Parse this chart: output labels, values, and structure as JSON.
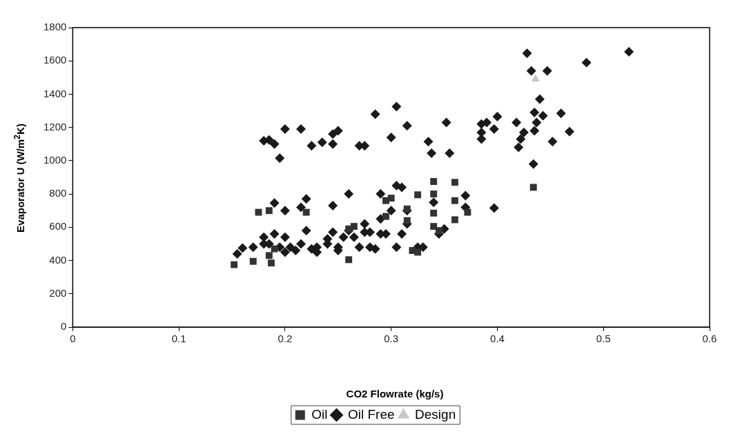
{
  "chart_data": {
    "type": "scatter",
    "xlabel": "CO2 Flowrate (kg/s)",
    "ylabel": "Evaporator U (W/m$^{2}$K)",
    "xlim": [
      0,
      0.6
    ],
    "xticks": [
      0,
      0.1,
      0.2,
      0.3,
      0.4,
      0.5,
      0.6
    ],
    "ylim": [
      0,
      1800
    ],
    "yticks": [
      0,
      200,
      400,
      600,
      800,
      1000,
      1200,
      1400,
      1600,
      1800
    ],
    "grid": false,
    "legend": "bottom",
    "series": [
      {
        "name": "Oil",
        "color": "#333333",
        "marker": "square",
        "x": [
          0.152,
          0.17,
          0.175,
          0.185,
          0.187,
          0.185,
          0.19,
          0.22,
          0.26,
          0.26,
          0.265,
          0.295,
          0.295,
          0.3,
          0.315,
          0.315,
          0.32,
          0.325,
          0.325,
          0.34,
          0.34,
          0.34,
          0.34,
          0.345,
          0.36,
          0.36,
          0.36,
          0.372,
          0.434
        ],
        "values": [
          375,
          395,
          690,
          700,
          385,
          430,
          470,
          690,
          405,
          590,
          605,
          760,
          665,
          775,
          710,
          640,
          460,
          795,
          450,
          875,
          800,
          685,
          605,
          580,
          870,
          760,
          645,
          690,
          840
        ]
      },
      {
        "name": "Oil Free",
        "color": "#1a1a1a",
        "marker": "diamond",
        "x": [
          0.18,
          0.185,
          0.19,
          0.195,
          0.2,
          0.215,
          0.225,
          0.235,
          0.245,
          0.245,
          0.25,
          0.27,
          0.275,
          0.285,
          0.3,
          0.305,
          0.315,
          0.335,
          0.338,
          0.352,
          0.355,
          0.385,
          0.385,
          0.385,
          0.39,
          0.397,
          0.4,
          0.418,
          0.42,
          0.422,
          0.425,
          0.428,
          0.432,
          0.434,
          0.435,
          0.435,
          0.437,
          0.44,
          0.443,
          0.447,
          0.452,
          0.46,
          0.468,
          0.484,
          0.524,
          0.155,
          0.16,
          0.17,
          0.18,
          0.18,
          0.185,
          0.19,
          0.19,
          0.2,
          0.2,
          0.205,
          0.21,
          0.215,
          0.22,
          0.22,
          0.215,
          0.225,
          0.23,
          0.24,
          0.24,
          0.245,
          0.245,
          0.25,
          0.255,
          0.26,
          0.26,
          0.265,
          0.27,
          0.275,
          0.28,
          0.285,
          0.29,
          0.29,
          0.29,
          0.295,
          0.3,
          0.305,
          0.305,
          0.31,
          0.31,
          0.315,
          0.315,
          0.325,
          0.33,
          0.34,
          0.345,
          0.35,
          0.37,
          0.37,
          0.397,
          0.195,
          0.2,
          0.23,
          0.25,
          0.275,
          0.28
        ],
        "values": [
          1120,
          1125,
          1100,
          1015,
          1190,
          1190,
          1090,
          1110,
          1100,
          1160,
          1180,
          1090,
          1090,
          1280,
          1140,
          1325,
          1210,
          1115,
          1045,
          1230,
          1045,
          1130,
          1170,
          1220,
          1230,
          1190,
          1265,
          1230,
          1080,
          1130,
          1170,
          1645,
          1540,
          980,
          1180,
          1290,
          1230,
          1370,
          1270,
          1540,
          1115,
          1285,
          1175,
          1590,
          1655,
          440,
          475,
          480,
          500,
          540,
          500,
          560,
          745,
          700,
          540,
          480,
          460,
          720,
          770,
          580,
          500,
          470,
          480,
          530,
          500,
          730,
          570,
          480,
          540,
          800,
          580,
          540,
          480,
          570,
          480,
          470,
          560,
          650,
          800,
          560,
          700,
          480,
          850,
          840,
          560,
          700,
          620,
          480,
          480,
          750,
          560,
          590,
          790,
          720,
          715,
          480,
          450,
          450,
          460,
          620,
          570
        ]
      },
      {
        "name": "Design",
        "color": "#c8c8c8",
        "marker": "triangle",
        "x": [
          0.436
        ],
        "values": [
          1490
        ]
      }
    ]
  }
}
